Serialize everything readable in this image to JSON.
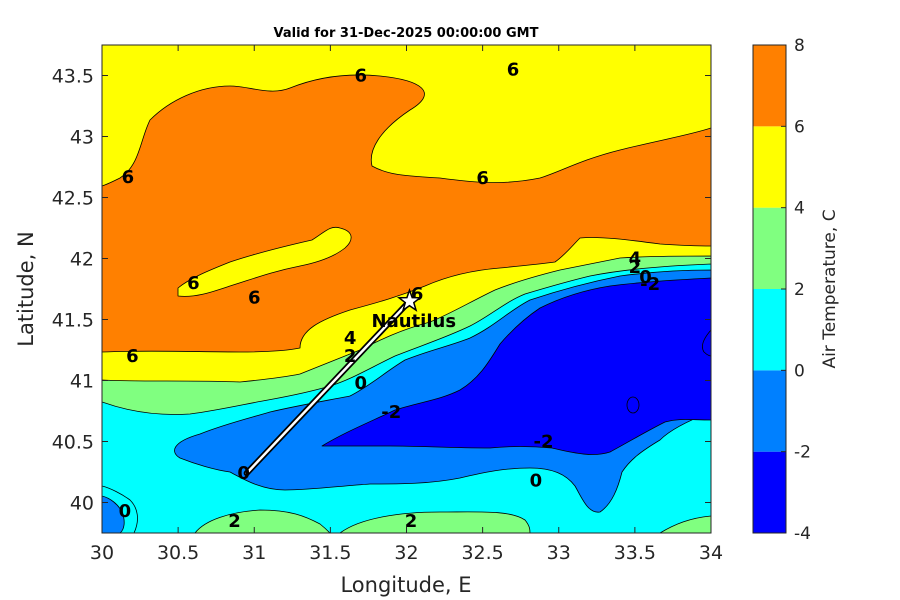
{
  "chart_data": {
    "type": "contour",
    "title": "Valid for 31-Dec-2025 00:00:00 GMT",
    "xlabel": "Longitude, E",
    "ylabel": "Latitude, N",
    "xlim": [
      30,
      34
    ],
    "ylim": [
      39.75,
      43.75
    ],
    "x_ticks": [
      "30",
      "30.5",
      "31",
      "31.5",
      "32",
      "32.5",
      "33",
      "33.5",
      "34"
    ],
    "y_ticks": [
      "40",
      "40.5",
      "41",
      "41.5",
      "42",
      "42.5",
      "43",
      "43.5"
    ],
    "colorbar": {
      "title": "Air Temperature, C",
      "levels": [
        -4,
        -2,
        0,
        2,
        4,
        6,
        8
      ],
      "tick_labels": [
        "-4",
        "-2",
        "0",
        "2",
        "4",
        "6",
        "8"
      ],
      "colors": [
        "#0000ff",
        "#0080ff",
        "#00ffff",
        "#80ff80",
        "#ffff00",
        "#ff8000",
        "#ff0000"
      ]
    },
    "contour_labels": [
      {
        "text": "6",
        "lon": 31.7,
        "lat": 43.5
      },
      {
        "text": "6",
        "lon": 32.7,
        "lat": 43.55
      },
      {
        "text": "6",
        "lon": 30.17,
        "lat": 42.67
      },
      {
        "text": "6",
        "lon": 32.5,
        "lat": 42.66
      },
      {
        "text": "6",
        "lon": 30.6,
        "lat": 41.8
      },
      {
        "text": "6",
        "lon": 31.0,
        "lat": 41.68
      },
      {
        "text": "6",
        "lon": 32.07,
        "lat": 41.71
      },
      {
        "text": "6",
        "lon": 30.2,
        "lat": 41.2
      },
      {
        "text": "4",
        "lon": 31.63,
        "lat": 41.35
      },
      {
        "text": "2",
        "lon": 31.63,
        "lat": 41.2
      },
      {
        "text": "0",
        "lon": 31.7,
        "lat": 40.98
      },
      {
        "text": "-2",
        "lon": 31.9,
        "lat": 40.74
      },
      {
        "text": "4",
        "lon": 33.5,
        "lat": 42.0
      },
      {
        "text": "2",
        "lon": 33.5,
        "lat": 41.93
      },
      {
        "text": "0",
        "lon": 33.57,
        "lat": 41.85
      },
      {
        "text": "-2",
        "lon": 33.6,
        "lat": 41.79
      },
      {
        "text": "-2",
        "lon": 32.9,
        "lat": 40.5
      },
      {
        "text": "0",
        "lon": 32.85,
        "lat": 40.18
      },
      {
        "text": "0",
        "lon": 30.15,
        "lat": 39.93
      },
      {
        "text": "2",
        "lon": 30.87,
        "lat": 39.85
      },
      {
        "text": "2",
        "lon": 32.03,
        "lat": 39.85
      },
      {
        "text": "0",
        "lon": 30.93,
        "lat": 40.24
      }
    ],
    "station": {
      "name": "Nautilus",
      "lon": 32.02,
      "lat": 41.65
    },
    "track": {
      "from": {
        "lon": 30.95,
        "lat": 40.24
      },
      "to": {
        "lon": 32.02,
        "lat": 41.65
      }
    }
  }
}
